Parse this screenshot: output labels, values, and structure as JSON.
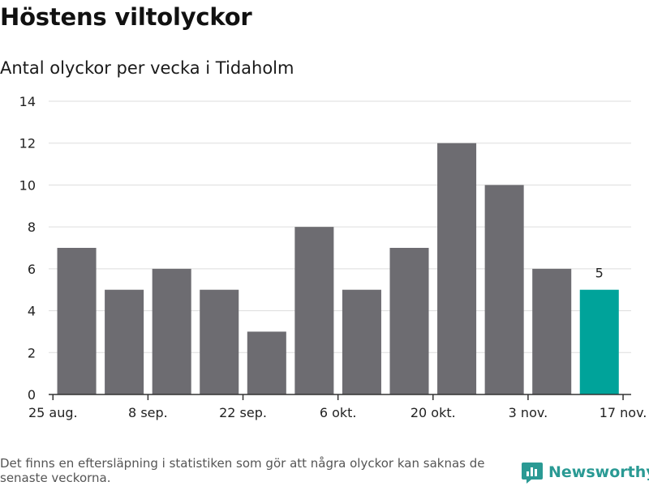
{
  "header": {
    "title": "Höstens viltolyckor",
    "subtitle": "Antal olyckor per vecka i Tidaholm"
  },
  "footer": {
    "note": "Det finns en eftersläpning i statistiken som gör att några olyckor kan saknas de senaste veckorna.",
    "brand": "Newsworthy"
  },
  "colors": {
    "bar": "#6d6c71",
    "highlight": "#00a39a",
    "grid": "#dddddd",
    "axis": "#333333",
    "text": "#222222"
  },
  "chart_data": {
    "type": "bar",
    "title": "Höstens viltolyckor",
    "subtitle": "Antal olyckor per vecka i Tidaholm",
    "xlabel": "",
    "ylabel": "",
    "ylim": [
      0,
      14
    ],
    "yticks": [
      0,
      2,
      4,
      6,
      8,
      10,
      12,
      14
    ],
    "grid": true,
    "x_tick_labels": [
      "25 aug.",
      "8 sep.",
      "22 sep.",
      "6 okt.",
      "20 okt.",
      "3 nov.",
      "17 nov."
    ],
    "values": [
      7,
      5,
      6,
      5,
      3,
      8,
      5,
      7,
      12,
      10,
      6,
      5
    ],
    "highlight_index": 11,
    "annotation": "5"
  }
}
